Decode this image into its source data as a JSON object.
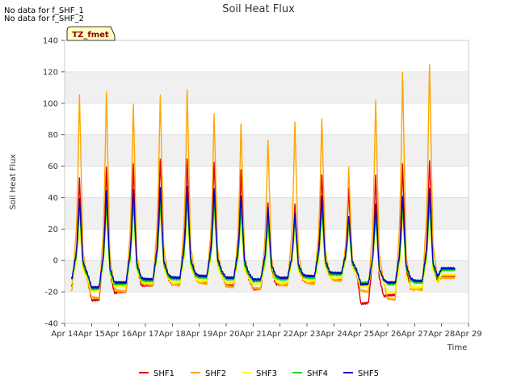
{
  "notes": [
    "No data for f_SHF_1",
    "No data for f_SHF_2"
  ],
  "site_label": "TZ_fmet",
  "chart_data": {
    "type": "line",
    "title": "Soil Heat Flux",
    "xlabel": "Time",
    "ylabel": "Soil Heat Flux",
    "xlim": [
      14,
      29
    ],
    "ylim": [
      -40,
      140
    ],
    "x_ticks": [
      {
        "value": 14,
        "label": "Apr 14"
      },
      {
        "value": 15,
        "label": "Apr 15"
      },
      {
        "value": 16,
        "label": "Apr 16"
      },
      {
        "value": 17,
        "label": "Apr 17"
      },
      {
        "value": 18,
        "label": "Apr 18"
      },
      {
        "value": 19,
        "label": "Apr 19"
      },
      {
        "value": 20,
        "label": "Apr 20"
      },
      {
        "value": 21,
        "label": "Apr 21"
      },
      {
        "value": 22,
        "label": "Apr 22"
      },
      {
        "value": 23,
        "label": "Apr 23"
      },
      {
        "value": 24,
        "label": "Apr 24"
      },
      {
        "value": 25,
        "label": "Apr 25"
      },
      {
        "value": 26,
        "label": "Apr 26"
      },
      {
        "value": 27,
        "label": "Apr 27"
      },
      {
        "value": 28,
        "label": "Apr 28"
      },
      {
        "value": 29,
        "label": "Apr 29"
      }
    ],
    "y_ticks": [
      -40,
      -20,
      0,
      20,
      40,
      60,
      80,
      100,
      120,
      140
    ],
    "shaded_bands": [
      [
        100,
        120
      ],
      [
        60,
        80
      ],
      [
        20,
        40
      ],
      [
        -20,
        0
      ]
    ],
    "x_start": 14.25,
    "x_end": 28.5,
    "series": [
      {
        "name": "SHF1",
        "color": "#dd0000",
        "daily_min": [
          -16,
          -25,
          -20,
          -16,
          -15,
          -14,
          -16,
          -18,
          -15,
          -14,
          -12,
          -27,
          -22,
          -18
        ],
        "daily_max": [
          53,
          61,
          62,
          66,
          65,
          64,
          58,
          38,
          36,
          56,
          46,
          56,
          62,
          65
        ],
        "end_value": -10
      },
      {
        "name": "SHF2",
        "color": "#ffa500",
        "daily_min": [
          -19,
          -24,
          -20,
          -16,
          -16,
          -15,
          -17,
          -18,
          -16,
          -15,
          -13,
          -20,
          -25,
          -19
        ],
        "daily_max": [
          107,
          109,
          101,
          107,
          110,
          95,
          88,
          78,
          89,
          92,
          60,
          104,
          121,
          127
        ],
        "end_value": -11
      },
      {
        "name": "SHF3",
        "color": "#ffff00",
        "daily_min": [
          -14,
          -19,
          -16,
          -14,
          -14,
          -13,
          -14,
          -15,
          -14,
          -13,
          -11,
          -16,
          -20,
          -17
        ],
        "daily_max": [
          27,
          32,
          34,
          33,
          34,
          33,
          28,
          20,
          22,
          28,
          22,
          28,
          30,
          33
        ],
        "end_value": -9
      },
      {
        "name": "SHF4",
        "color": "#00dd00",
        "daily_min": [
          -12,
          -18,
          -15,
          -13,
          -12,
          -11,
          -12,
          -13,
          -12,
          -11,
          -9,
          -14,
          -15,
          -14
        ],
        "daily_max": [
          35,
          38,
          38,
          39,
          40,
          38,
          33,
          25,
          27,
          34,
          24,
          30,
          35,
          38
        ],
        "end_value": -6
      },
      {
        "name": "SHF5",
        "color": "#0000cc",
        "daily_min": [
          -11,
          -17,
          -14,
          -12,
          -11,
          -10,
          -11,
          -12,
          -11,
          -10,
          -8,
          -15,
          -14,
          -13
        ],
        "daily_max": [
          40,
          45,
          46,
          47,
          48,
          46,
          42,
          34,
          31,
          41,
          29,
          36,
          42,
          46
        ],
        "end_value": -5
      }
    ]
  }
}
